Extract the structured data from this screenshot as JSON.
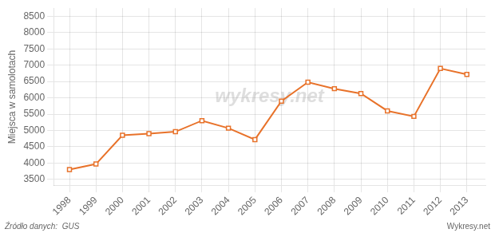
{
  "chart_data": {
    "type": "line",
    "ylabel": "Miejsca w samolotach",
    "annotations": [
      "wykresy.net",
      "Źródło danych:  GUS",
      "Wykresy.net"
    ],
    "x": [
      1998,
      1999,
      2000,
      2001,
      2002,
      2003,
      2004,
      2005,
      2006,
      2007,
      2008,
      2009,
      2010,
      2011,
      2012,
      2013
    ],
    "values": [
      3800,
      3970,
      4850,
      4900,
      4960,
      5300,
      5070,
      4720,
      5900,
      6480,
      6280,
      6130,
      5600,
      5430,
      6900,
      6720
    ],
    "color": "#e8722a",
    "marker": "square",
    "xlim": [
      1997.4,
      2013.7
    ],
    "xticks": [
      1998,
      1999,
      2000,
      2001,
      2002,
      2003,
      2004,
      2005,
      2006,
      2007,
      2008,
      2009,
      2010,
      2011,
      2012,
      2013
    ],
    "ylim": [
      3300,
      8750
    ],
    "yticks": [
      3500,
      4000,
      4500,
      5000,
      5500,
      6000,
      6500,
      7000,
      7500,
      8000,
      8500
    ],
    "grid": true
  }
}
